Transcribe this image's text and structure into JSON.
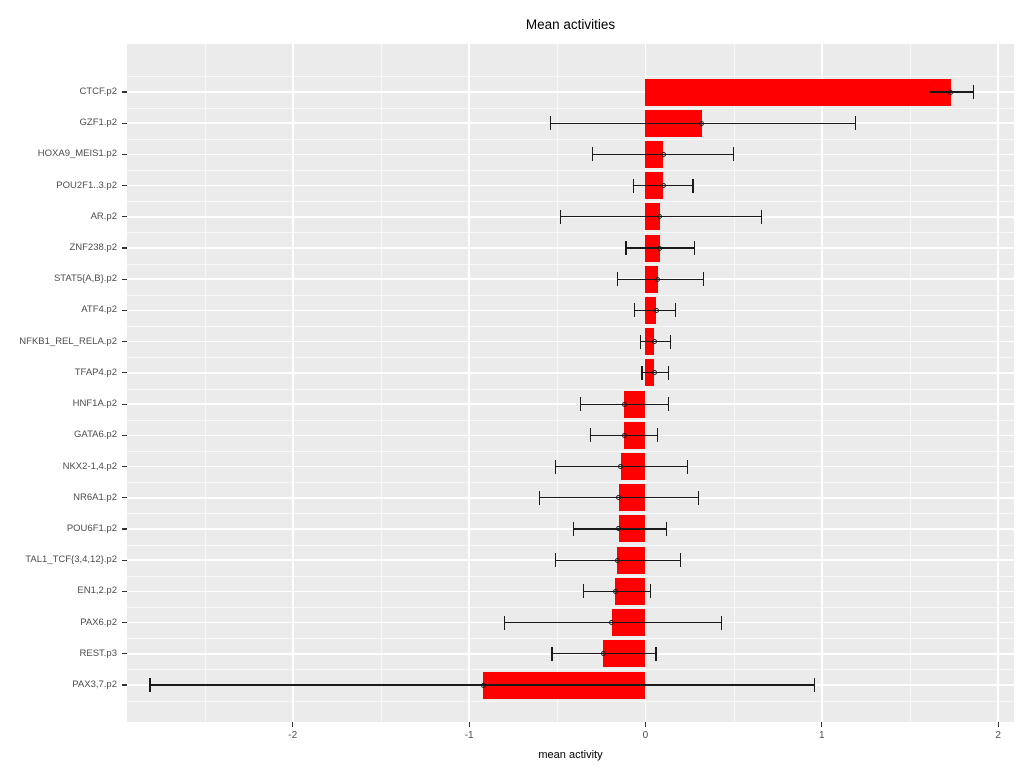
{
  "title": "Mean activities",
  "chart_data": {
    "type": "bar",
    "orientation": "horizontal",
    "title": "Mean activities",
    "xlabel": "mean activity",
    "ylabel": "",
    "xlim": [
      -2.94,
      2.09
    ],
    "x_major_ticks": [
      -2,
      -1,
      0,
      1,
      2
    ],
    "x_minor_ticks": [
      -2.5,
      -1.5,
      -0.5,
      0.5,
      1.5
    ],
    "grid": true,
    "legend": "none",
    "panel_bg": "#EBEBEB",
    "grid_color": "#FFFFFF",
    "bar_color": "#FF0000",
    "errorbar_color": "#1a1a1a",
    "tick_label_color": "#4D4D4D",
    "categories": [
      "CTCF.p2",
      "GZF1.p2",
      "HOXA9_MEIS1.p2",
      "POU2F1..3.p2",
      "AR.p2",
      "ZNF238.p2",
      "STAT5{A,B}.p2",
      "ATF4.p2",
      "NFKB1_REL_RELA.p2",
      "TFAP4.p2",
      "HNF1A.p2",
      "GATA6.p2",
      "NKX2-1,4.p2",
      "NR6A1.p2",
      "POU6F1.p2",
      "TAL1_TCF{3,4,12}.p2",
      "EN1,2.p2",
      "PAX6.p2",
      "REST.p3",
      "PAX3,7.p2"
    ],
    "series": [
      {
        "name": "mean activity",
        "values": [
          1.73,
          0.32,
          0.1,
          0.1,
          0.08,
          0.08,
          0.07,
          0.06,
          0.05,
          0.05,
          -0.12,
          -0.12,
          -0.14,
          -0.15,
          -0.15,
          -0.16,
          -0.17,
          -0.19,
          -0.24,
          -0.92
        ],
        "ci_low": [
          1.61,
          -0.54,
          -0.3,
          -0.07,
          -0.48,
          -0.11,
          -0.16,
          -0.06,
          -0.03,
          -0.02,
          -0.37,
          -0.31,
          -0.51,
          -0.6,
          -0.41,
          -0.51,
          -0.35,
          -0.8,
          -0.53,
          -2.81
        ],
        "ci_high": [
          1.86,
          1.19,
          0.5,
          0.27,
          0.66,
          0.28,
          0.33,
          0.17,
          0.14,
          0.13,
          0.13,
          0.07,
          0.24,
          0.3,
          0.12,
          0.2,
          0.03,
          0.43,
          0.06,
          0.96
        ]
      }
    ]
  }
}
